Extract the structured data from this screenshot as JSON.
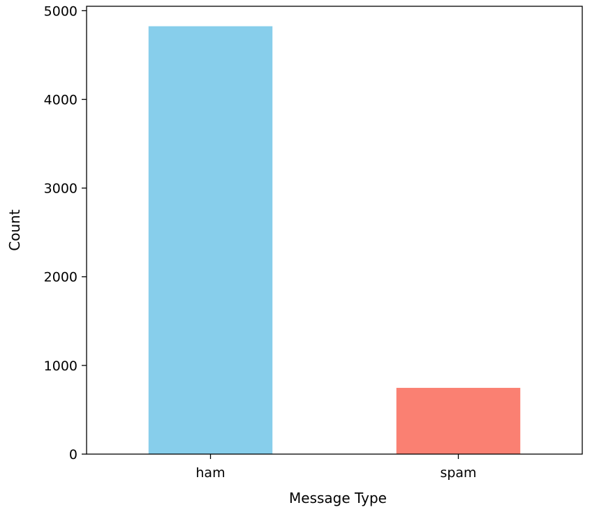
{
  "chart_data": {
    "type": "bar",
    "title": "",
    "xlabel": "Message Type",
    "ylabel": "Count",
    "categories": [
      "ham",
      "spam"
    ],
    "values": [
      4825,
      747
    ],
    "colors": [
      "#87ceeb",
      "#fa8072"
    ],
    "ylim": [
      0,
      5050
    ],
    "yticks": [
      0,
      1000,
      2000,
      3000,
      4000,
      5000
    ],
    "ytick_labels": [
      "0",
      "1000",
      "2000",
      "3000",
      "4000",
      "5000"
    ],
    "grid": false,
    "legend": "none"
  }
}
